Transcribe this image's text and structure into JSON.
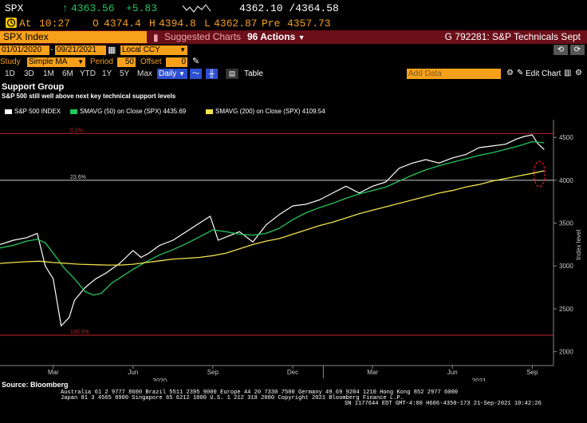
{
  "header": {
    "ticker": "SPX",
    "last_price": "4363.56",
    "change": "+5.83",
    "bid_ask": "4362.10 /4364.58",
    "at_label": "At",
    "time": "10:27",
    "open_prefix": "O",
    "open": "4374.4",
    "high_prefix": "H",
    "high": "4394.8",
    "low_prefix": "L",
    "low": "4362.87",
    "pre_prefix": "Pre",
    "pre": "4357.73"
  },
  "titlebar": {
    "security": "SPX Index",
    "suggested": "Suggested Charts",
    "actions_num": "96",
    "actions": "Actions",
    "chart_name": "G 792281: S&P Technicals Sept"
  },
  "toolbar1": {
    "date_from": "01/01/2020",
    "date_to": "09/21/2021",
    "currency": "Local CCY"
  },
  "toolbar2": {
    "study_label": "Study",
    "study_value": "Simple MA",
    "period_label": "Period",
    "period_value": "50",
    "offset_label": "Offset",
    "offset_value": "0"
  },
  "toolbar3": {
    "ranges": [
      "1D",
      "3D",
      "1M",
      "6M",
      "YTD",
      "1Y",
      "5Y",
      "Max"
    ],
    "frequency": "Daily",
    "table_label": "Table",
    "add_data": "Add Data",
    "edit_chart": "Edit Chart"
  },
  "annotation": {
    "title": "Support Group",
    "subtitle": "S&P 500 still well above next key technical support levels"
  },
  "legend": [
    {
      "label": "S&P 500 INDEX",
      "color": "#ffffff"
    },
    {
      "label": "SMAVG (50)  on Close (SPX) 4435.69",
      "color": "#22c55e"
    },
    {
      "label": "SMAVG (200)  on Close (SPX) 4109.54",
      "color": "#f2e14c"
    }
  ],
  "chart_data": {
    "type": "line",
    "ylabel": "Index level",
    "ylim": [
      1950,
      4650
    ],
    "yticks": [
      2000,
      2500,
      3000,
      3500,
      4000,
      4500
    ],
    "xticks": [
      {
        "label": "Mar",
        "t": 2.0
      },
      {
        "label": "Jun",
        "t": 5.0
      },
      {
        "label": "Sep",
        "t": 8.0
      },
      {
        "label": "Dec",
        "t": 11.0
      },
      {
        "label": "Mar",
        "t": 14.0
      },
      {
        "label": "Jun",
        "t": 17.0
      },
      {
        "label": "Sep",
        "t": 20.0
      }
    ],
    "year_labels": [
      {
        "label": "2020",
        "t": 6.0
      },
      {
        "label": "2021",
        "t": 18.0
      }
    ],
    "fib_levels": [
      {
        "label": "0.0%",
        "value": 4545,
        "color": "#c0262c"
      },
      {
        "label": "23.6%",
        "value": 4000,
        "color": "#cccccc"
      },
      {
        "label": "100.0%",
        "value": 2192,
        "color": "#c0262c"
      }
    ],
    "series": [
      {
        "name": "S&P 500 INDEX",
        "color": "#ffffff",
        "x": [
          0,
          0.5,
          1.0,
          1.4,
          1.7,
          2.0,
          2.3,
          2.6,
          2.8,
          3.2,
          3.6,
          4.0,
          4.5,
          5.0,
          5.3,
          5.6,
          6.0,
          6.5,
          7.0,
          7.5,
          7.9,
          8.2,
          8.6,
          9.0,
          9.5,
          10.0,
          10.5,
          11.0,
          11.5,
          12.0,
          12.5,
          13.0,
          13.5,
          14.0,
          14.5,
          15.0,
          15.5,
          16.0,
          16.5,
          17.0,
          17.5,
          18.0,
          18.5,
          19.0,
          19.4,
          19.7,
          20.0,
          20.2,
          20.45
        ],
        "y": [
          3250,
          3300,
          3330,
          3380,
          3000,
          2850,
          2300,
          2400,
          2600,
          2750,
          2850,
          2920,
          3030,
          3180,
          3100,
          3150,
          3240,
          3300,
          3400,
          3500,
          3580,
          3300,
          3350,
          3400,
          3280,
          3480,
          3600,
          3700,
          3720,
          3770,
          3850,
          3930,
          3850,
          3930,
          3980,
          4140,
          4200,
          4240,
          4200,
          4260,
          4300,
          4380,
          4400,
          4420,
          4480,
          4510,
          4530,
          4430,
          4358
        ]
      },
      {
        "name": "SMAVG (50)",
        "color": "#22c55e",
        "x": [
          0,
          0.5,
          1.0,
          1.4,
          1.7,
          2.0,
          2.4,
          2.8,
          3.2,
          3.5,
          3.8,
          4.2,
          4.6,
          5.0,
          5.5,
          6.0,
          6.5,
          7.0,
          7.5,
          8.0,
          8.5,
          9.0,
          9.5,
          10.0,
          10.5,
          11.0,
          11.5,
          12.0,
          12.5,
          13.0,
          13.5,
          14.0,
          14.5,
          15.0,
          15.5,
          16.0,
          16.5,
          17.0,
          17.5,
          18.0,
          18.5,
          19.0,
          19.5,
          20.0,
          20.45
        ],
        "y": [
          3210,
          3240,
          3290,
          3310,
          3270,
          3150,
          2980,
          2850,
          2700,
          2660,
          2680,
          2800,
          2880,
          2960,
          3050,
          3130,
          3190,
          3260,
          3340,
          3420,
          3400,
          3370,
          3360,
          3380,
          3440,
          3540,
          3620,
          3680,
          3730,
          3790,
          3840,
          3880,
          3920,
          3990,
          4060,
          4120,
          4170,
          4210,
          4250,
          4290,
          4320,
          4360,
          4400,
          4450,
          4436
        ]
      },
      {
        "name": "SMAVG (200)",
        "color": "#f2e14c",
        "x": [
          0,
          0.5,
          1.0,
          1.5,
          2.0,
          2.5,
          3.0,
          3.5,
          4.0,
          4.5,
          5.0,
          5.5,
          6.0,
          6.5,
          7.0,
          7.5,
          8.0,
          8.5,
          9.0,
          9.5,
          10.0,
          10.5,
          11.0,
          11.5,
          12.0,
          12.5,
          13.0,
          13.5,
          14.0,
          14.5,
          15.0,
          15.5,
          16.0,
          16.5,
          17.0,
          17.5,
          18.0,
          18.5,
          19.0,
          19.5,
          20.0,
          20.45
        ],
        "y": [
          3030,
          3040,
          3050,
          3055,
          3040,
          3030,
          3020,
          3015,
          3010,
          3010,
          3020,
          3040,
          3060,
          3080,
          3090,
          3100,
          3120,
          3150,
          3200,
          3250,
          3290,
          3320,
          3370,
          3420,
          3470,
          3510,
          3560,
          3610,
          3650,
          3690,
          3730,
          3770,
          3810,
          3850,
          3880,
          3920,
          3950,
          3990,
          4020,
          4050,
          4080,
          4110
        ]
      }
    ]
  },
  "footer": {
    "source": "Source: Bloomberg",
    "line1": "Australia 61 2 9777 8600 Brazil 5511 2395 9000 Europe 44 20 7330 7500 Germany 49 69 9204 1210 Hong Kong 852 2977 6000",
    "line2": "Japan 81 3 4565 8900        Singapore 65 6212 1000        U.S. 1 212 318 2000        Copyright 2021 Bloomberg Finance L.P.",
    "line3": "SN 1177644 EDT  GMT-4:00 H606-4350-173 21-Sep-2021 10:42:26"
  }
}
